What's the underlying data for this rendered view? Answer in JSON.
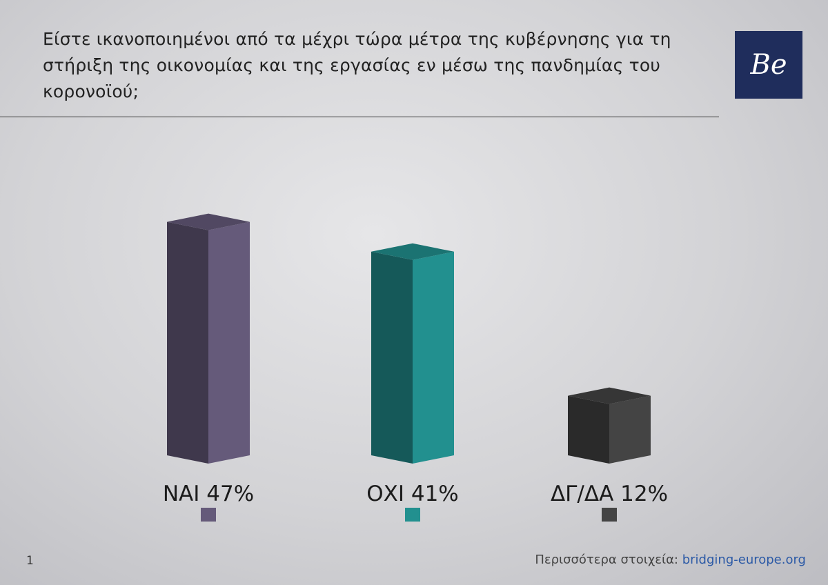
{
  "chart_data": {
    "type": "bar3d",
    "title": "Είστε ικανοποιημένοι από τα μέχρι τώρα μέτρα της κυβέρνησης για τη στήριξη της οικονομίας και της εργασίας εν μέσω της πανδημίας του κορονοϊού;",
    "categories": [
      "ΝΑΙ",
      "ΟΧΙ",
      "ΔΓ/ΔΑ"
    ],
    "values": [
      47,
      41,
      12
    ],
    "value_labels": [
      "47%",
      "41%",
      "12%"
    ],
    "colors": [
      "#655a7a",
      "#22908f",
      "#444444"
    ]
  },
  "logo": "Be",
  "footer": {
    "page_number": "1",
    "text": "Περισσότερα στοιχεία:",
    "link": "bridging-europe.org"
  }
}
